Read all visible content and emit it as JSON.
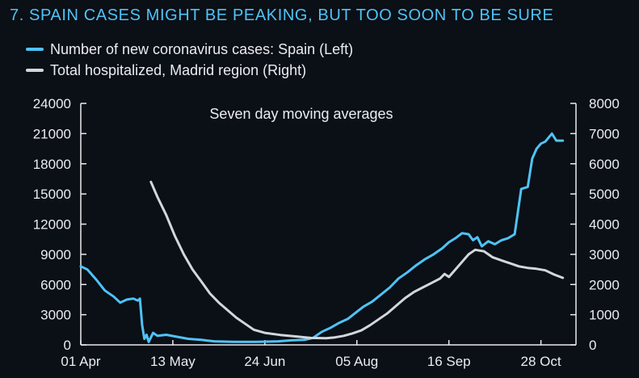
{
  "title": "7.  SPAIN CASES MIGHT BE PEAKING, BUT TOO SOON TO BE SURE",
  "colors": {
    "background": "#0b0f16",
    "series_left": "#4fc3f7",
    "series_right": "#d3d7da",
    "text": "#e9edf2",
    "axis": "#e9edf2"
  },
  "chart_data": {
    "type": "line",
    "annotation": "Seven day moving averages",
    "grid": false,
    "legend_position": "top-left",
    "x_axis": {
      "type": "date",
      "ticks": [
        "01 Apr",
        "13 May",
        "24 Jun",
        "05 Aug",
        "16 Sep",
        "28 Oct"
      ]
    },
    "y_left": {
      "ylim": [
        0,
        24000
      ],
      "ticks": [
        "24000",
        "21000",
        "18000",
        "15000",
        "12000",
        "9000",
        "6000",
        "3000",
        "0"
      ]
    },
    "y_right": {
      "ylim": [
        0,
        8000
      ],
      "ticks": [
        "8000",
        "7000",
        "6000",
        "5000",
        "4000",
        "3000",
        "2000",
        "1000",
        "0"
      ]
    },
    "series": [
      {
        "name": "Number of new coronavirus cases: Spain (Left)",
        "axis": "left",
        "color": "#4fc3f7",
        "points": [
          [
            "2020-04-01",
            7800
          ],
          [
            "2020-04-04",
            7500
          ],
          [
            "2020-04-08",
            6500
          ],
          [
            "2020-04-12",
            5400
          ],
          [
            "2020-04-16",
            4800
          ],
          [
            "2020-04-19",
            4200
          ],
          [
            "2020-04-22",
            4500
          ],
          [
            "2020-04-25",
            4600
          ],
          [
            "2020-04-27",
            4400
          ],
          [
            "2020-04-28",
            4600
          ],
          [
            "2020-04-29",
            2000
          ],
          [
            "2020-04-30",
            600
          ],
          [
            "2020-05-01",
            1000
          ],
          [
            "2020-05-02",
            300
          ],
          [
            "2020-05-04",
            1200
          ],
          [
            "2020-05-06",
            900
          ],
          [
            "2020-05-10",
            1000
          ],
          [
            "2020-05-15",
            800
          ],
          [
            "2020-05-20",
            600
          ],
          [
            "2020-05-26",
            500
          ],
          [
            "2020-06-01",
            350
          ],
          [
            "2020-06-10",
            300
          ],
          [
            "2020-06-20",
            300
          ],
          [
            "2020-06-30",
            350
          ],
          [
            "2020-07-06",
            450
          ],
          [
            "2020-07-12",
            500
          ],
          [
            "2020-07-16",
            700
          ],
          [
            "2020-07-20",
            1300
          ],
          [
            "2020-07-24",
            1700
          ],
          [
            "2020-07-28",
            2200
          ],
          [
            "2020-08-01",
            2600
          ],
          [
            "2020-08-05",
            3300
          ],
          [
            "2020-08-08",
            3800
          ],
          [
            "2020-08-12",
            4300
          ],
          [
            "2020-08-16",
            5000
          ],
          [
            "2020-08-20",
            5700
          ],
          [
            "2020-08-24",
            6600
          ],
          [
            "2020-08-28",
            7200
          ],
          [
            "2020-09-01",
            7900
          ],
          [
            "2020-09-05",
            8500
          ],
          [
            "2020-09-09",
            9000
          ],
          [
            "2020-09-13",
            9600
          ],
          [
            "2020-09-16",
            10200
          ],
          [
            "2020-09-19",
            10600
          ],
          [
            "2020-09-22",
            11100
          ],
          [
            "2020-09-25",
            11000
          ],
          [
            "2020-09-27",
            10400
          ],
          [
            "2020-09-29",
            10700
          ],
          [
            "2020-10-01",
            9800
          ],
          [
            "2020-10-04",
            10300
          ],
          [
            "2020-10-07",
            10000
          ],
          [
            "2020-10-10",
            10400
          ],
          [
            "2020-10-13",
            10600
          ],
          [
            "2020-10-16",
            11000
          ],
          [
            "2020-10-19",
            15500
          ],
          [
            "2020-10-22",
            15700
          ],
          [
            "2020-10-24",
            18500
          ],
          [
            "2020-10-26",
            19500
          ],
          [
            "2020-10-28",
            20000
          ],
          [
            "2020-10-30",
            20200
          ],
          [
            "2020-11-02",
            21000
          ],
          [
            "2020-11-04",
            20300
          ],
          [
            "2020-11-07",
            20300
          ]
        ]
      },
      {
        "name": "Total hospitalized, Madrid region (Right)",
        "axis": "right",
        "color": "#d3d7da",
        "points": [
          [
            "2020-05-03",
            5400
          ],
          [
            "2020-05-06",
            4900
          ],
          [
            "2020-05-10",
            4300
          ],
          [
            "2020-05-14",
            3600
          ],
          [
            "2020-05-18",
            3000
          ],
          [
            "2020-05-22",
            2500
          ],
          [
            "2020-05-26",
            2100
          ],
          [
            "2020-05-30",
            1700
          ],
          [
            "2020-06-03",
            1400
          ],
          [
            "2020-06-07",
            1150
          ],
          [
            "2020-06-11",
            900
          ],
          [
            "2020-06-15",
            700
          ],
          [
            "2020-06-19",
            500
          ],
          [
            "2020-06-24",
            400
          ],
          [
            "2020-07-01",
            330
          ],
          [
            "2020-07-08",
            280
          ],
          [
            "2020-07-15",
            230
          ],
          [
            "2020-07-22",
            220
          ],
          [
            "2020-07-26",
            250
          ],
          [
            "2020-07-30",
            300
          ],
          [
            "2020-08-03",
            380
          ],
          [
            "2020-08-07",
            480
          ],
          [
            "2020-08-11",
            650
          ],
          [
            "2020-08-15",
            850
          ],
          [
            "2020-08-19",
            1050
          ],
          [
            "2020-08-23",
            1300
          ],
          [
            "2020-08-27",
            1550
          ],
          [
            "2020-08-31",
            1750
          ],
          [
            "2020-09-04",
            1900
          ],
          [
            "2020-09-08",
            2050
          ],
          [
            "2020-09-12",
            2200
          ],
          [
            "2020-09-14",
            2350
          ],
          [
            "2020-09-16",
            2250
          ],
          [
            "2020-09-19",
            2500
          ],
          [
            "2020-09-22",
            2750
          ],
          [
            "2020-09-25",
            3000
          ],
          [
            "2020-09-28",
            3150
          ],
          [
            "2020-10-02",
            3100
          ],
          [
            "2020-10-06",
            2900
          ],
          [
            "2020-10-10",
            2800
          ],
          [
            "2020-10-14",
            2700
          ],
          [
            "2020-10-18",
            2600
          ],
          [
            "2020-10-22",
            2550
          ],
          [
            "2020-10-26",
            2520
          ],
          [
            "2020-10-30",
            2470
          ],
          [
            "2020-11-03",
            2330
          ],
          [
            "2020-11-07",
            2220
          ]
        ]
      }
    ]
  }
}
